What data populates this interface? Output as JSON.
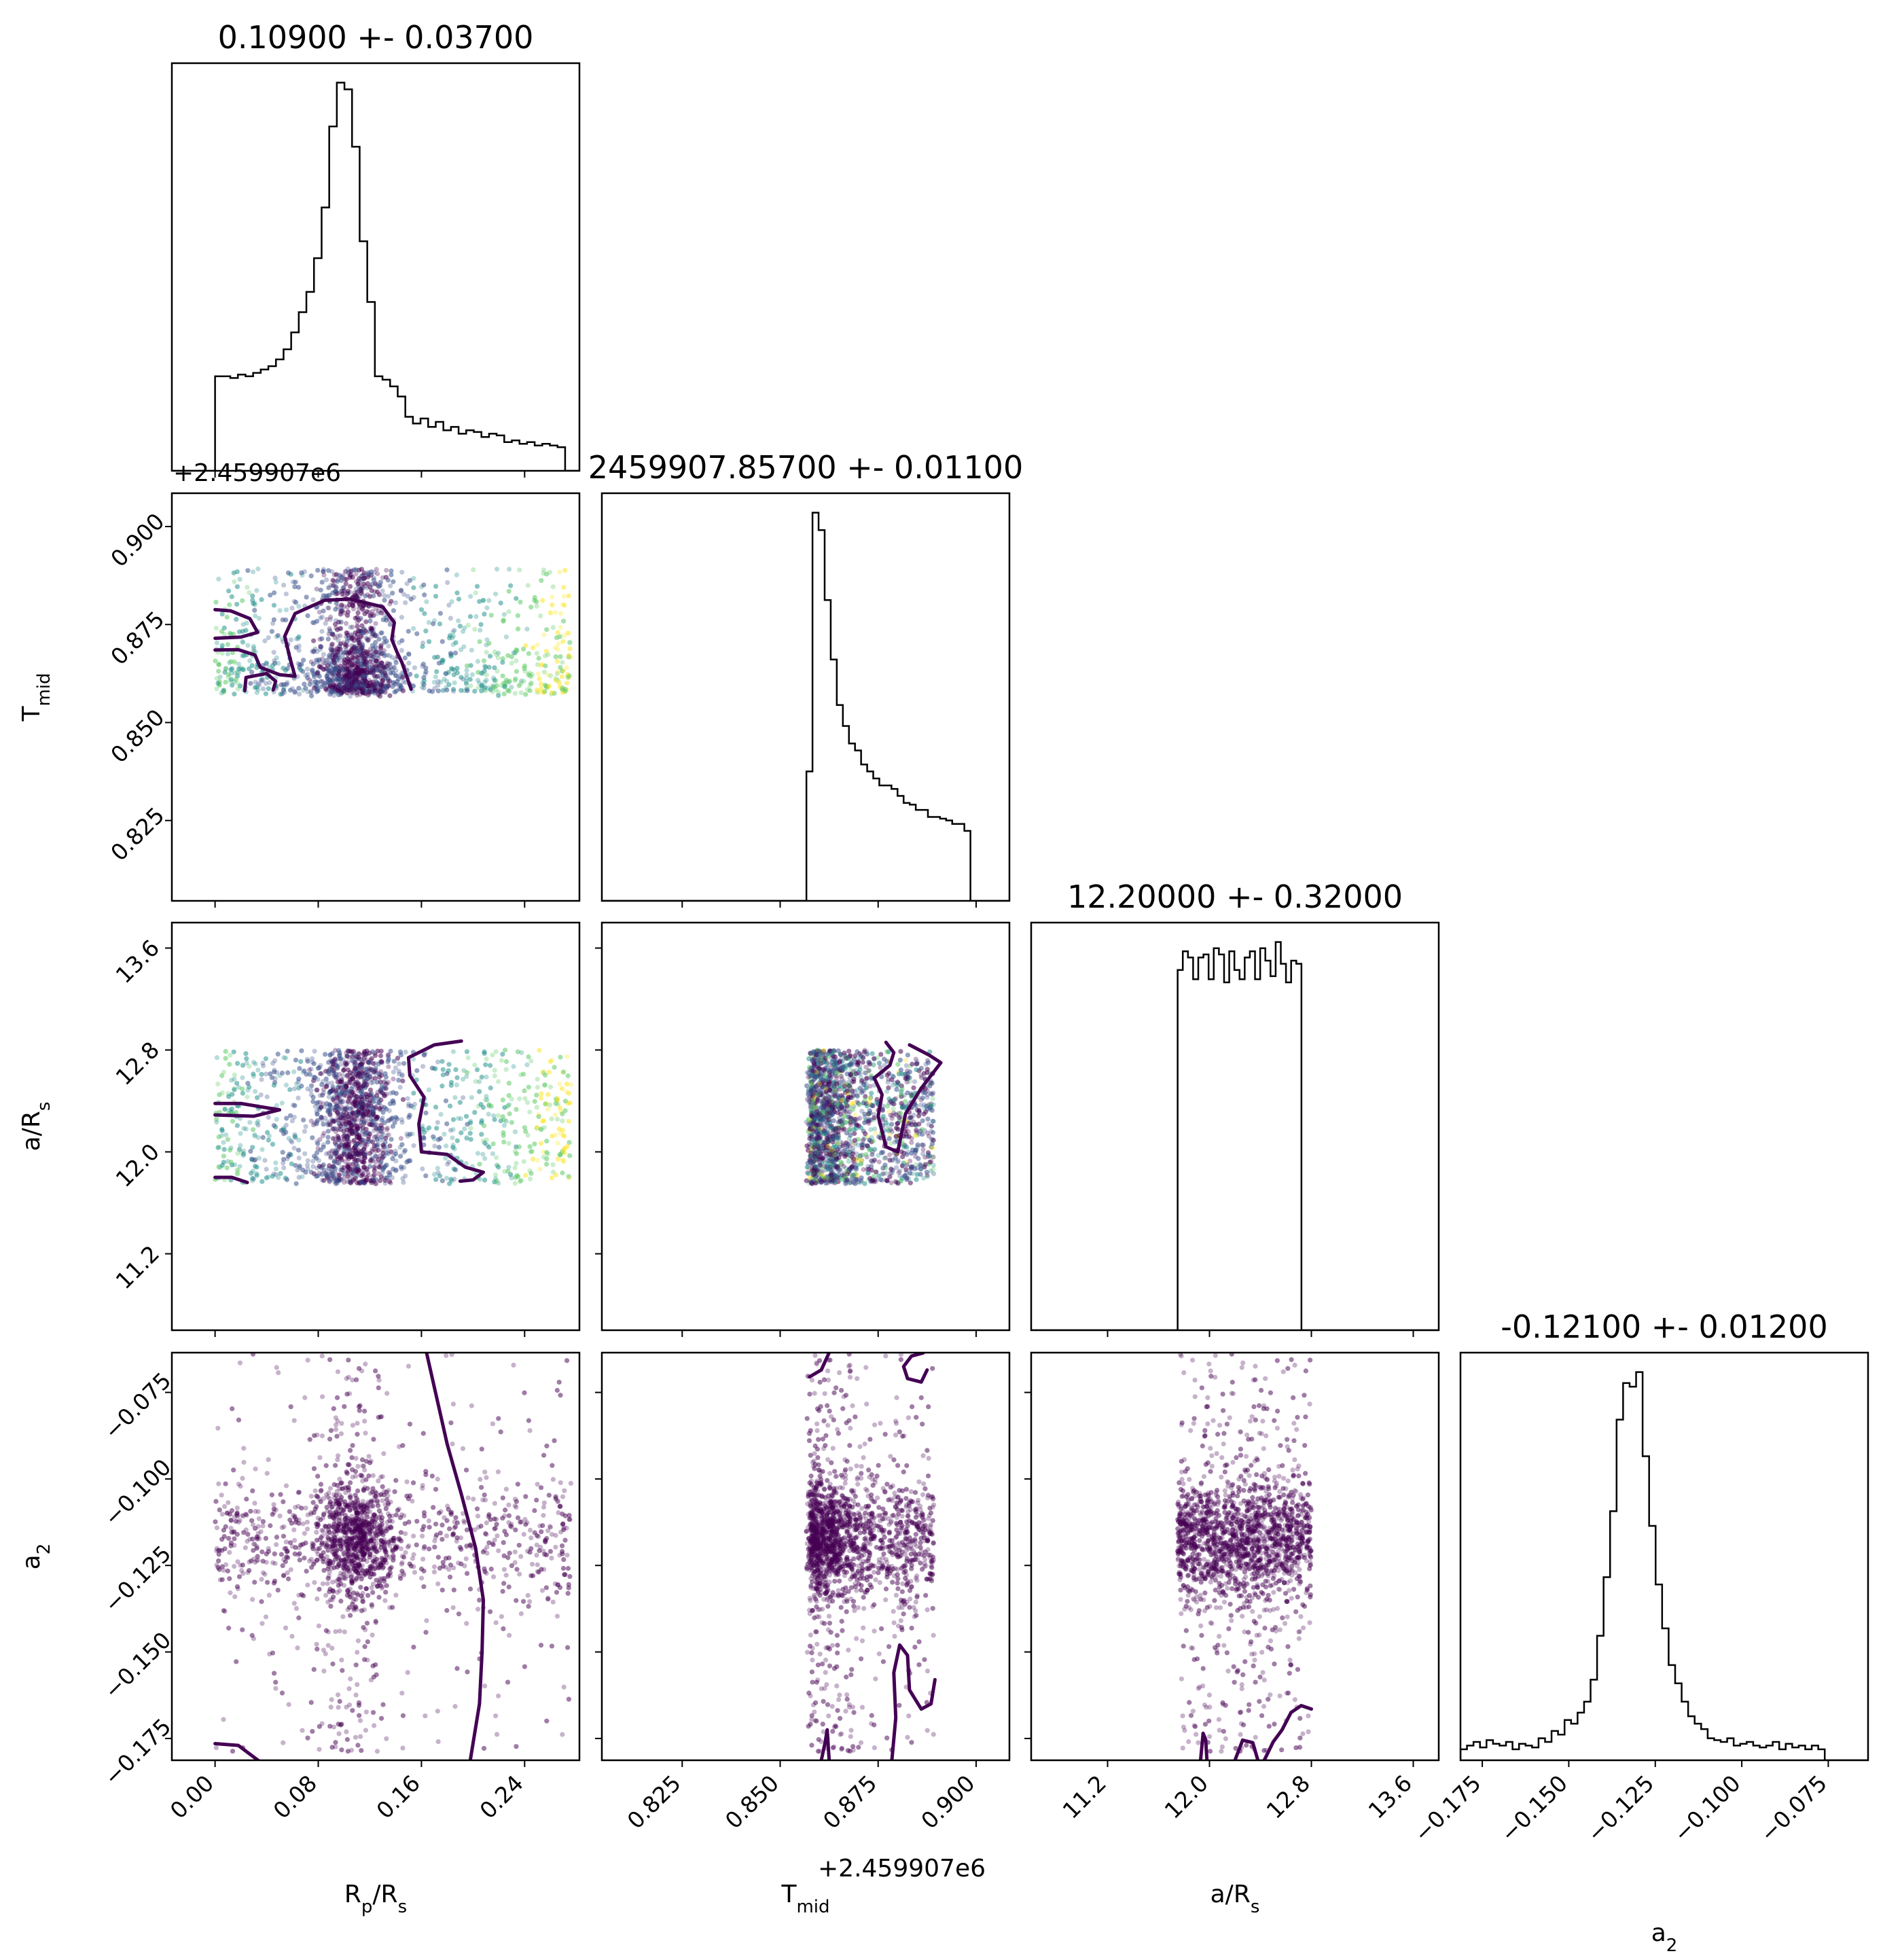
{
  "chart_data": {
    "type": "corner",
    "parameters": [
      {
        "key": "rp",
        "label": "R",
        "sub": "p",
        "label_tail": "/R",
        "sub_tail": "s",
        "range": [
          -0.0335,
          0.2825
        ],
        "ticks": [
          0.0,
          0.08,
          0.16,
          0.24
        ],
        "tick_labels": [
          "0.00",
          "0.08",
          "0.16",
          "0.24"
        ],
        "title": "0.10900 +- 0.03700",
        "offset": "+2.459907e6"
      },
      {
        "key": "tmid",
        "label": "T",
        "sub": "mid",
        "label_tail": "",
        "sub_tail": "",
        "range": [
          0.8045,
          0.9085
        ],
        "ticks": [
          0.825,
          0.85,
          0.875,
          0.9
        ],
        "tick_labels": [
          "0.825",
          "0.850",
          "0.875",
          "0.900"
        ],
        "title": "2459907.85700 +- 0.01100",
        "offset": "+2.459907e6"
      },
      {
        "key": "ars",
        "label": "a/R",
        "sub": "s",
        "label_tail": "",
        "sub_tail": "",
        "range": [
          10.6,
          13.8
        ],
        "ticks": [
          11.2,
          12.0,
          12.8,
          13.6
        ],
        "tick_labels": [
          "11.2",
          "12.0",
          "12.8",
          "13.6"
        ],
        "title": "12.20000 +- 0.32000"
      },
      {
        "key": "a2",
        "label": "a",
        "sub": "2",
        "label_tail": "",
        "sub_tail": "",
        "range": [
          -0.1813,
          -0.0635
        ],
        "ticks": [
          -0.175,
          -0.15,
          -0.125,
          -0.1,
          -0.075
        ],
        "tick_labels": [
          "−0.175",
          "−0.150",
          "−0.125",
          "−0.100",
          "−0.075"
        ],
        "title": "-0.12100 +- 0.01200"
      }
    ],
    "histograms": [
      {
        "param": "rp",
        "bin_width": 0.0059,
        "start": 0.0,
        "counts": [
          2.8,
          2.8,
          2.75,
          2.85,
          2.8,
          2.9,
          3.0,
          3.1,
          3.3,
          3.6,
          4.1,
          4.7,
          5.3,
          6.3,
          7.8,
          10.2,
          11.5,
          11.3,
          9.6,
          6.8,
          5.0,
          2.8,
          2.7,
          2.5,
          2.2,
          1.6,
          1.4,
          1.55,
          1.3,
          1.45,
          1.2,
          1.3,
          1.1,
          1.2,
          1.15,
          1.0,
          1.1,
          1.05,
          0.85,
          0.9,
          0.8,
          0.85,
          0.75,
          0.8,
          0.75,
          0.7
        ]
      },
      {
        "param": "tmid",
        "bin_width": 0.00155,
        "start": 0.8567,
        "counts": [
          3.7,
          11.1,
          10.6,
          8.6,
          6.9,
          5.6,
          5.0,
          4.5,
          4.3,
          3.9,
          3.7,
          3.5,
          3.3,
          3.3,
          3.2,
          3.0,
          2.8,
          2.75,
          2.6,
          2.6,
          2.4,
          2.4,
          2.35,
          2.3,
          2.2,
          2.2,
          2.0,
          0.0
        ]
      },
      {
        "param": "ars",
        "bin_width": 0.0405,
        "start": 11.75,
        "counts": [
          11.6,
          12.2,
          12.0,
          11.3,
          12.0,
          12.1,
          11.3,
          12.3,
          12.1,
          11.2,
          12.2,
          11.6,
          11.3,
          12.0,
          12.2,
          11.3,
          12.3,
          11.9,
          11.4,
          12.5,
          11.8,
          11.2,
          11.9,
          11.8,
          0.0
        ]
      },
      {
        "param": "a2",
        "bin_width": 0.00188,
        "start": -0.1813,
        "counts": [
          0.3,
          0.4,
          0.5,
          0.35,
          0.55,
          0.45,
          0.4,
          0.5,
          0.3,
          0.45,
          0.4,
          0.35,
          0.6,
          0.5,
          0.8,
          0.7,
          1.1,
          1.0,
          1.3,
          1.6,
          2.2,
          3.4,
          5.0,
          6.8,
          9.3,
          10.3,
          10.2,
          10.6,
          8.3,
          6.4,
          4.8,
          3.6,
          2.6,
          2.1,
          1.6,
          1.2,
          1.0,
          0.85,
          0.6,
          0.55,
          0.5,
          0.6,
          0.4,
          0.45,
          0.5,
          0.4,
          0.35,
          0.4,
          0.5,
          0.3,
          0.45,
          0.35,
          0.4,
          0.3,
          0.4,
          0.3
        ]
      }
    ],
    "scatter": {
      "n_points": 2600,
      "colormap": [
        "#440154",
        "#3b528b",
        "#21918c",
        "#5ec962",
        "#fde725"
      ],
      "dense_color": "#440154"
    },
    "contours": [
      {
        "x": "rp",
        "y": "tmid",
        "paths": [
          [
            [
              0.0,
              0.8788
            ],
            [
              0.012,
              0.8785
            ],
            [
              0.027,
              0.8765
            ],
            [
              0.033,
              0.873
            ],
            [
              0.02,
              0.8718
            ],
            [
              0.0,
              0.8715
            ]
          ],
          [
            [
              0.0,
              0.8685
            ],
            [
              0.018,
              0.8686
            ],
            [
              0.031,
              0.8672
            ],
            [
              0.035,
              0.8641
            ],
            [
              0.05,
              0.8622
            ],
            [
              0.062,
              0.8618
            ],
            [
              0.058,
              0.8665
            ],
            [
              0.054,
              0.872
            ],
            [
              0.062,
              0.8778
            ],
            [
              0.085,
              0.8812
            ],
            [
              0.105,
              0.8815
            ],
            [
              0.13,
              0.8795
            ],
            [
              0.139,
              0.8755
            ],
            [
              0.137,
              0.8712
            ],
            [
              0.141,
              0.868
            ],
            [
              0.145,
              0.8652
            ],
            [
              0.152,
              0.8585
            ]
          ],
          [
            [
              0.023,
              0.8581
            ],
            [
              0.024,
              0.8615
            ],
            [
              0.04,
              0.8625
            ],
            [
              0.047,
              0.8605
            ],
            [
              0.045,
              0.8583
            ]
          ]
        ]
      },
      {
        "x": "rp",
        "y": "ars",
        "paths": [
          [
            [
              0.0,
              12.38
            ],
            [
              0.02,
              12.38
            ],
            [
              0.05,
              12.33
            ],
            [
              0.03,
              12.28
            ],
            [
              0.0,
              12.29
            ]
          ],
          [
            [
              0.0,
              11.8
            ],
            [
              0.013,
              11.8
            ],
            [
              0.025,
              11.76
            ]
          ],
          [
            [
              0.191,
              12.87
            ],
            [
              0.17,
              12.84
            ],
            [
              0.15,
              12.74
            ],
            [
              0.151,
              12.6
            ],
            [
              0.162,
              12.43
            ],
            [
              0.158,
              12.22
            ],
            [
              0.16,
              12.0
            ],
            [
              0.18,
              11.98
            ],
            [
              0.194,
              11.88
            ],
            [
              0.208,
              11.84
            ],
            [
              0.2,
              11.78
            ],
            [
              0.19,
              11.77
            ]
          ]
        ]
      },
      {
        "x": "rp",
        "y": "a2",
        "paths": [
          [
            [
              0.164,
              -0.0636
            ],
            [
              0.18,
              -0.09
            ],
            [
              0.191,
              -0.1045
            ],
            [
              0.202,
              -0.12
            ],
            [
              0.208,
              -0.135
            ],
            [
              0.207,
              -0.15
            ],
            [
              0.205,
              -0.165
            ],
            [
              0.198,
              -0.181
            ]
          ],
          [
            [
              0.0,
              -0.1765
            ],
            [
              0.018,
              -0.177
            ],
            [
              0.034,
              -0.1815
            ]
          ]
        ]
      },
      {
        "x": "tmid",
        "y": "ars",
        "paths": [
          [
            [
              0.883,
              12.84
            ],
            [
              0.888,
              12.76
            ],
            [
              0.891,
              12.7
            ],
            [
              0.889,
              12.62
            ],
            [
              0.886,
              12.5
            ],
            [
              0.884,
              12.4
            ],
            [
              0.882,
              12.3
            ],
            [
              0.881,
              12.15
            ],
            [
              0.88,
              12.0
            ],
            [
              0.877,
              12.04
            ],
            [
              0.876,
              12.16
            ],
            [
              0.875,
              12.28
            ],
            [
              0.876,
              12.45
            ],
            [
              0.874,
              12.58
            ],
            [
              0.878,
              12.68
            ],
            [
              0.879,
              12.78
            ],
            [
              0.877,
              12.86
            ]
          ]
        ]
      },
      {
        "x": "tmid",
        "y": "a2",
        "paths": [
          [
            [
              0.8575,
              -0.0705
            ],
            [
              0.8605,
              -0.0685
            ],
            [
              0.8625,
              -0.0635
            ]
          ],
          [
            [
              0.8865,
              -0.0636
            ],
            [
              0.8835,
              -0.0645
            ],
            [
              0.8815,
              -0.0675
            ],
            [
              0.8825,
              -0.071
            ],
            [
              0.886,
              -0.072
            ],
            [
              0.8875,
              -0.0685
            ]
          ],
          [
            [
              0.8605,
              -0.1813
            ],
            [
              0.8615,
              -0.176
            ],
            [
              0.862,
              -0.1725
            ],
            [
              0.8625,
              -0.1813
            ]
          ],
          [
            [
              0.8785,
              -0.1813
            ],
            [
              0.8795,
              -0.169
            ],
            [
              0.879,
              -0.156
            ],
            [
              0.8805,
              -0.148
            ],
            [
              0.8825,
              -0.151
            ],
            [
              0.883,
              -0.161
            ],
            [
              0.886,
              -0.1665
            ],
            [
              0.8885,
              -0.165
            ],
            [
              0.8895,
              -0.158
            ]
          ]
        ]
      },
      {
        "x": "ars",
        "y": "a2",
        "paths": [
          [
            [
              11.93,
              -0.1813
            ],
            [
              11.95,
              -0.1735
            ],
            [
              11.97,
              -0.1753
            ],
            [
              11.98,
              -0.1813
            ]
          ],
          [
            [
              12.2,
              -0.1813
            ],
            [
              12.26,
              -0.1755
            ],
            [
              12.34,
              -0.1762
            ],
            [
              12.38,
              -0.1813
            ]
          ],
          [
            [
              12.43,
              -0.1813
            ],
            [
              12.5,
              -0.176
            ],
            [
              12.57,
              -0.1725
            ],
            [
              12.64,
              -0.1675
            ],
            [
              12.72,
              -0.1655
            ],
            [
              12.8,
              -0.1665
            ]
          ]
        ]
      }
    ]
  }
}
